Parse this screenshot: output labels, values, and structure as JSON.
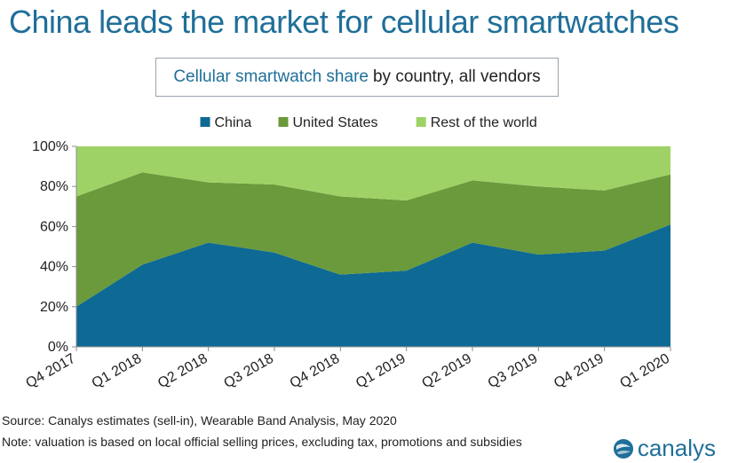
{
  "headline": "China leads the market for cellular smartwatches",
  "subtitle": {
    "highlight": "Cellular smartwatch share",
    "rest": "by country, all vendors"
  },
  "footer": {
    "source": "Source: Canalys estimates (sell-in), Wearable Band Analysis, May 2020",
    "note": "Note: valuation is based on local official selling prices, excluding tax, promotions and subsidies"
  },
  "brand": {
    "name": "canalys",
    "icon": "globe-icon",
    "color": "#1f6f99"
  },
  "chart_data": {
    "type": "area",
    "stacked": true,
    "categories": [
      "Q4 2017",
      "Q1 2018",
      "Q2 2018",
      "Q3 2018",
      "Q4 2018",
      "Q1 2019",
      "Q2 2019",
      "Q3 2019",
      "Q4 2019",
      "Q1 2020"
    ],
    "series": [
      {
        "name": "China",
        "color": "#0e6a94",
        "values": [
          20,
          41,
          52,
          47,
          36,
          38,
          52,
          46,
          48,
          61
        ]
      },
      {
        "name": "United States",
        "color": "#6a9a3b",
        "values": [
          55,
          46,
          30,
          34,
          39,
          35,
          31,
          34,
          30,
          25
        ]
      },
      {
        "name": "Rest of the world",
        "color": "#9ed266",
        "values": [
          25,
          13,
          18,
          19,
          25,
          27,
          17,
          20,
          22,
          14
        ]
      }
    ],
    "yticks": [
      "0%",
      "20%",
      "40%",
      "60%",
      "80%",
      "100%"
    ],
    "ylim": [
      0,
      100
    ],
    "legend": "top-center",
    "grid": false
  }
}
